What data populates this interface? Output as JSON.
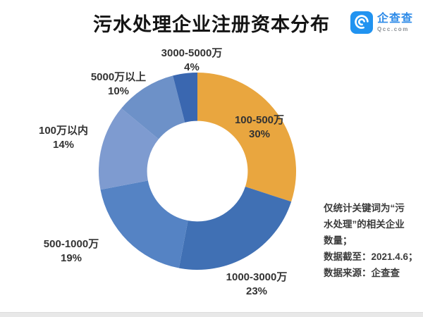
{
  "header": {
    "title": "污水处理企业注册资本分布",
    "logo": {
      "brand_name": "企查查",
      "domain": "Qcc.com",
      "icon": "qcc-spiral-icon",
      "icon_bg_color": "#2193F0",
      "brand_text_color": "#2E8BE8"
    }
  },
  "chart_data": {
    "type": "pie",
    "variant": "donut",
    "title": "污水处理企业注册资本分布",
    "unit": "%",
    "start_angle_deg": 0,
    "direction": "clockwise",
    "inner_radius_ratio": 0.51,
    "legend": "none",
    "segments": [
      {
        "label": "100-500万",
        "value": 30,
        "pct_label": "30%",
        "color": "#E9A63F"
      },
      {
        "label": "1000-3000万",
        "value": 23,
        "pct_label": "23%",
        "color": "#4070B4"
      },
      {
        "label": "500-1000万",
        "value": 19,
        "pct_label": "19%",
        "color": "#5583C4"
      },
      {
        "label": "100万以内",
        "value": 14,
        "pct_label": "14%",
        "color": "#7E9BD0"
      },
      {
        "label": "5000万以上",
        "value": 10,
        "pct_label": "10%",
        "color": "#6D91C8"
      },
      {
        "label": "3000-5000万",
        "value": 4,
        "pct_label": "4%",
        "color": "#3A67B0"
      }
    ]
  },
  "annotation": {
    "lines": [
      "仅统计关键词为“污",
      "水处理”的相关企业",
      "数量；",
      "数据截至：2021.4.6；",
      "数据来源：企查查"
    ]
  },
  "footer": {
    "bar_color": "#E8E8E8"
  }
}
